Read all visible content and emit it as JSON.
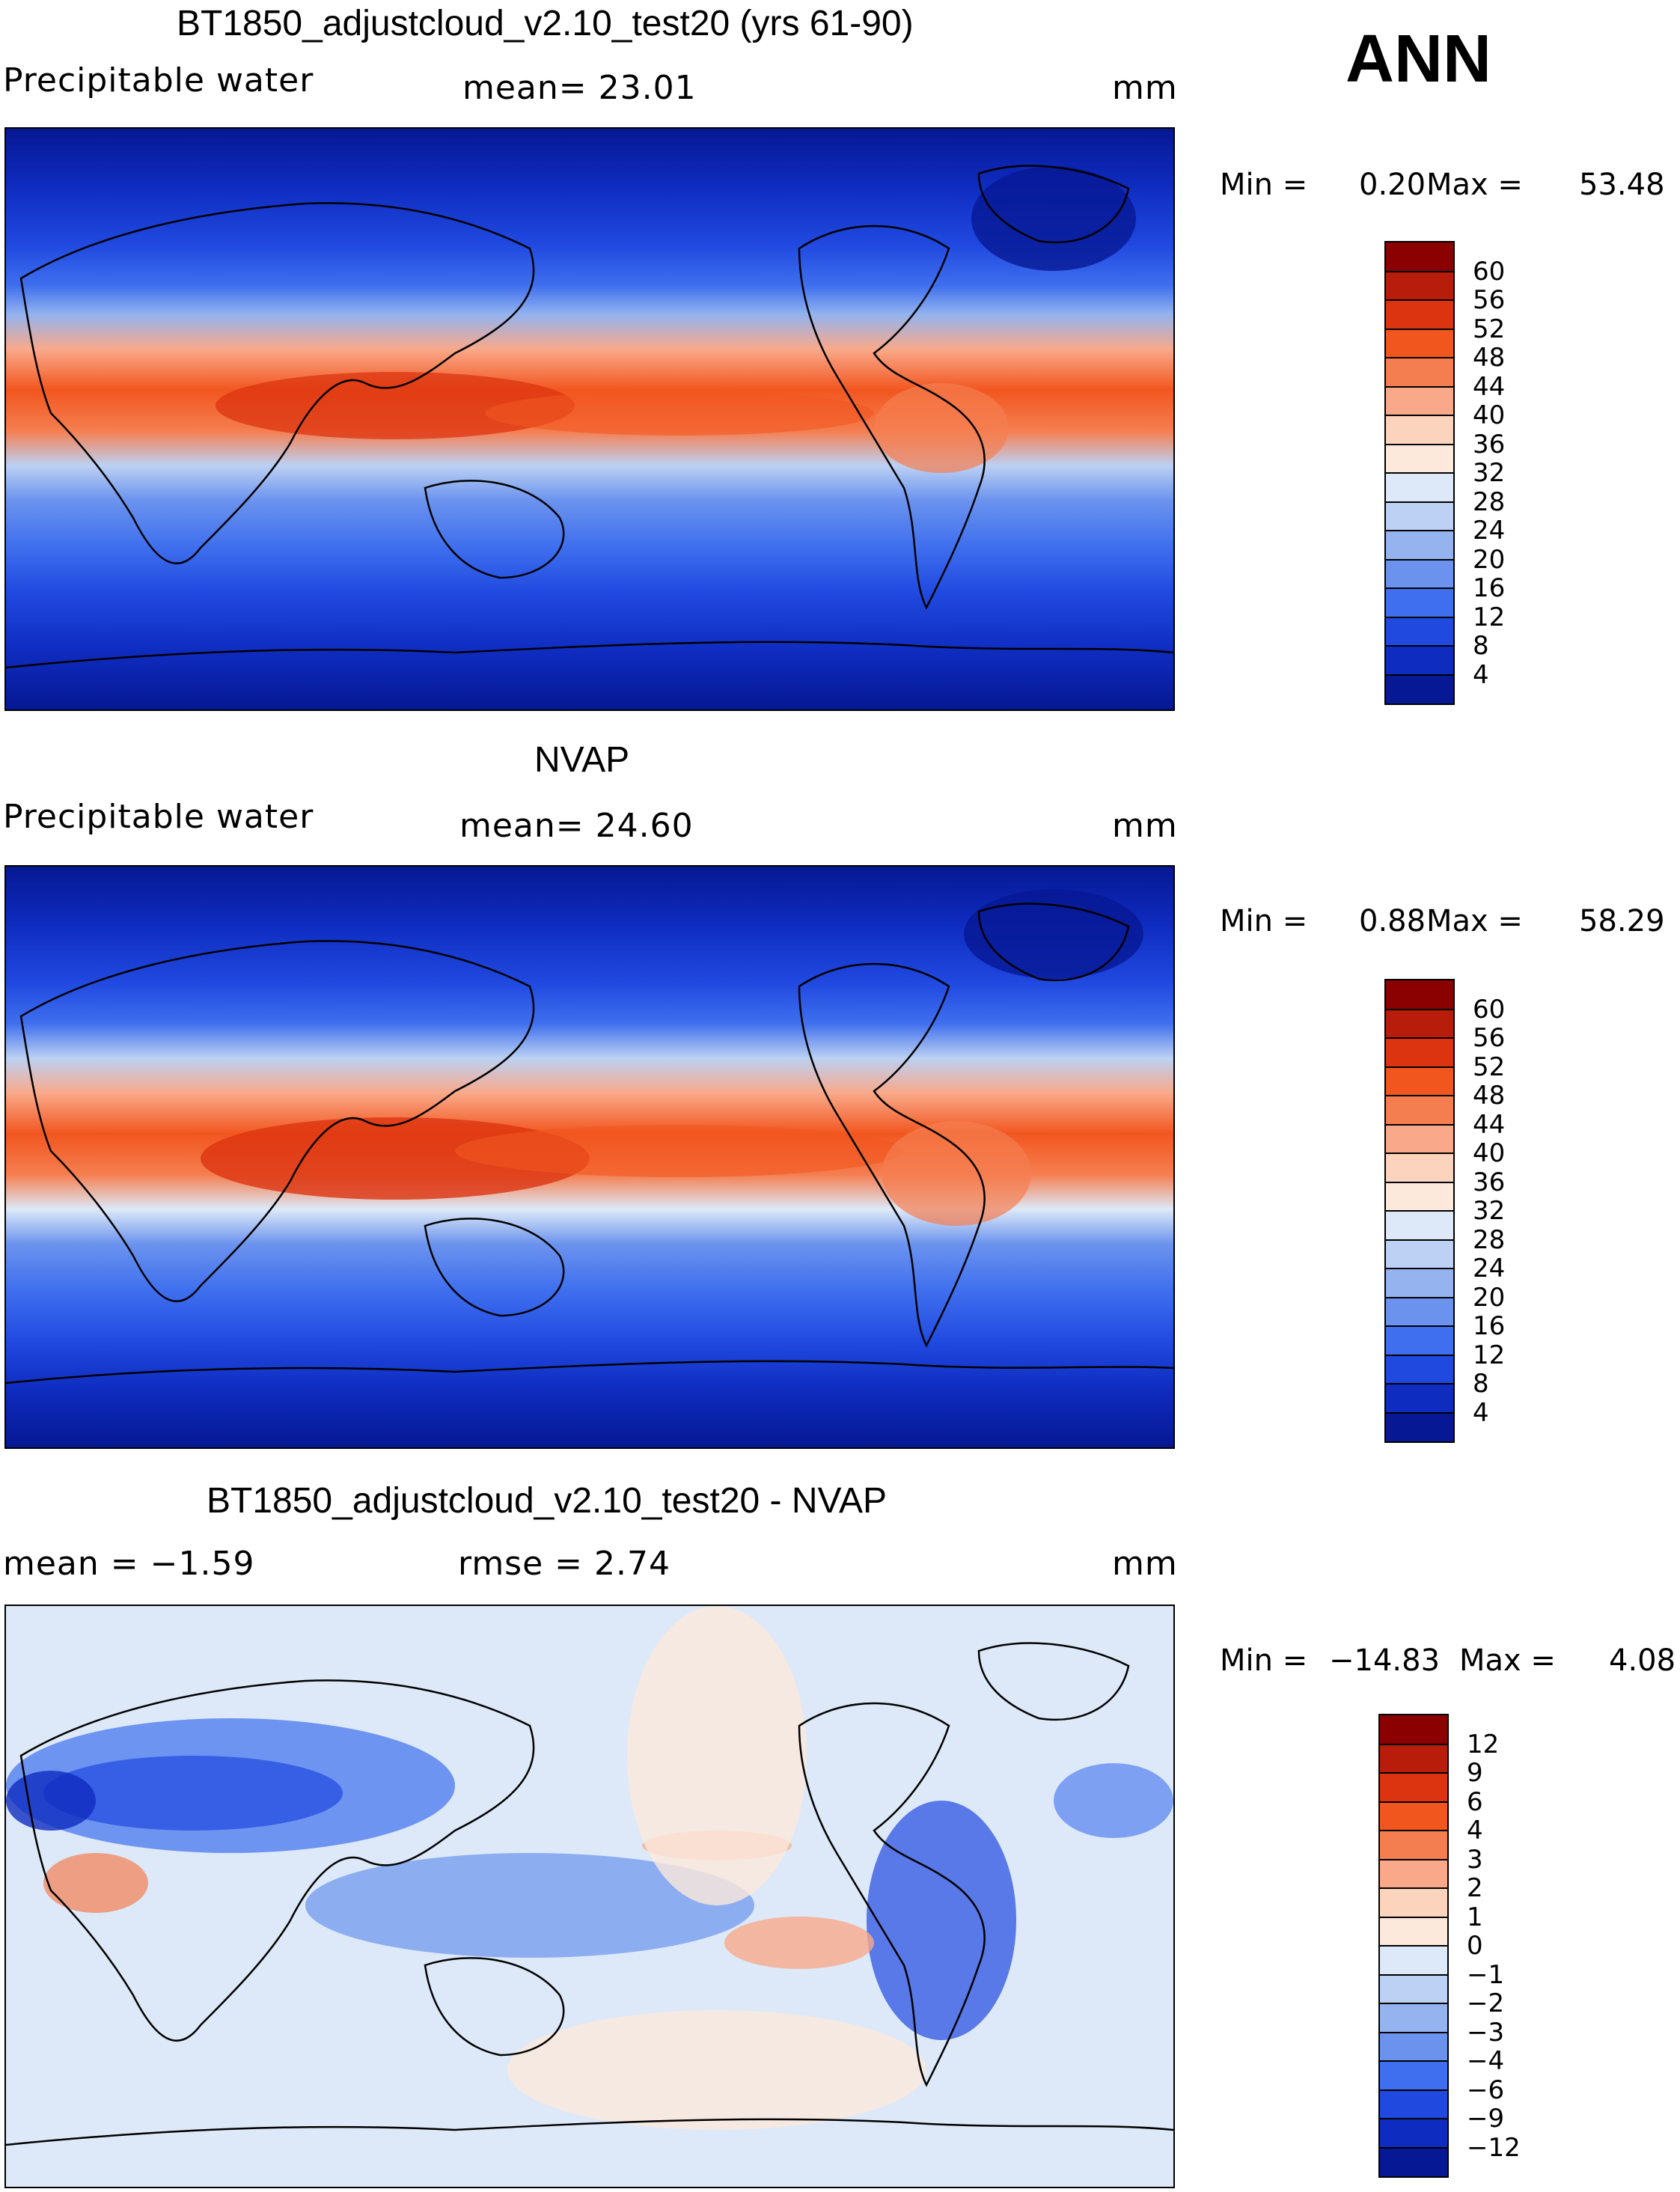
{
  "season": "ANN",
  "units": "mm",
  "chart_data": [
    {
      "type": "heatmap",
      "title": "BT1850_adjustcloud_v2.10_test20 (yrs 61-90)",
      "variable": "Precipitable water",
      "mean_text": "mean=   23.01",
      "units": "mm",
      "min_text": "Min =",
      "min_value": "0.20",
      "max_text": "Max =",
      "max_value": "53.48",
      "colorbar_levels": [
        "60",
        "56",
        "52",
        "48",
        "44",
        "40",
        "36",
        "32",
        "28",
        "24",
        "20",
        "16",
        "12",
        "8",
        "4"
      ],
      "colorbar_colors": [
        "#8b0000",
        "#b81c0a",
        "#dc3410",
        "#f2561f",
        "#f57e50",
        "#f9a98a",
        "#fcd3bc",
        "#fde9dc",
        "#dde9f8",
        "#bcd1f3",
        "#94b3ef",
        "#6b93ee",
        "#3f6fee",
        "#2049e0",
        "#0f2cc0",
        "#061893"
      ],
      "mean": 23.01,
      "min": 0.2,
      "max": 53.48
    },
    {
      "type": "heatmap",
      "title": "NVAP",
      "variable": "Precipitable water",
      "mean_text": "mean=   24.60",
      "units": "mm",
      "min_text": "Min =",
      "min_value": "0.88",
      "max_text": "Max =",
      "max_value": "58.29",
      "colorbar_levels": [
        "60",
        "56",
        "52",
        "48",
        "44",
        "40",
        "36",
        "32",
        "28",
        "24",
        "20",
        "16",
        "12",
        "8",
        "4"
      ],
      "colorbar_colors": [
        "#8b0000",
        "#b81c0a",
        "#dc3410",
        "#f2561f",
        "#f57e50",
        "#f9a98a",
        "#fcd3bc",
        "#fde9dc",
        "#dde9f8",
        "#bcd1f3",
        "#94b3ef",
        "#6b93ee",
        "#3f6fee",
        "#2049e0",
        "#0f2cc0",
        "#061893"
      ],
      "mean": 24.6,
      "min": 0.88,
      "max": 58.29
    },
    {
      "type": "heatmap",
      "title": "BT1850_adjustcloud_v2.10_test20 - NVAP",
      "mean_text": "mean =   −1.59",
      "rmse_text": "rmse =     2.74",
      "units": "mm",
      "min_text": "Min = ",
      "min_value": "−14.83",
      "max_text": "Max =",
      "max_value": "4.08",
      "colorbar_levels": [
        "12",
        "9",
        "6",
        "4",
        "3",
        "2",
        "1",
        "0",
        "−1",
        "−2",
        "−3",
        "−4",
        "−6",
        "−9",
        "−12"
      ],
      "colorbar_colors": [
        "#8b0000",
        "#b81c0a",
        "#dc3410",
        "#f2561f",
        "#f57e50",
        "#f9a98a",
        "#fcd3bc",
        "#fde9dc",
        "#dde9f8",
        "#bcd1f3",
        "#94b3ef",
        "#6b93ee",
        "#3f6fee",
        "#2049e0",
        "#0f2cc0",
        "#061893"
      ],
      "mean": -1.59,
      "rmse": 2.74,
      "min": -14.83,
      "max": 4.08
    }
  ]
}
